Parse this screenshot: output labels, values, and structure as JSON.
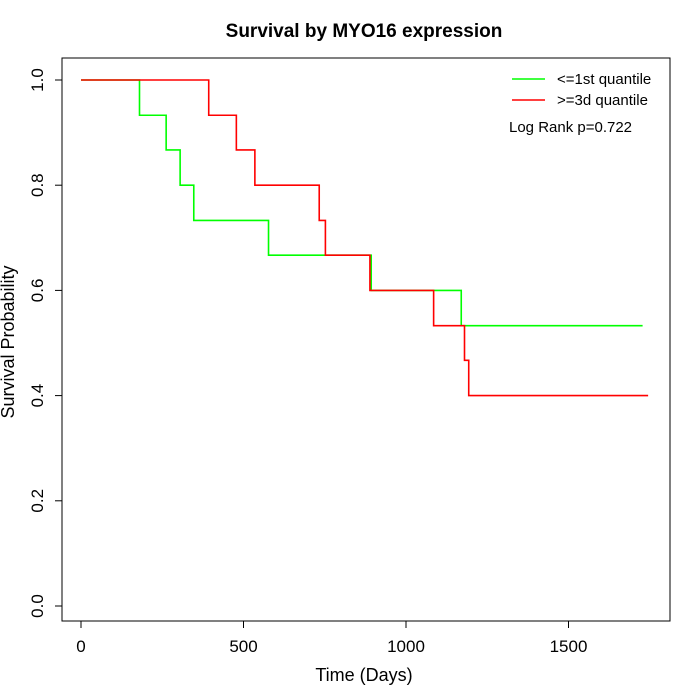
{
  "chart_data": {
    "type": "line",
    "subtype": "kaplan-meier-step",
    "title": "Survival by MYO16 expression",
    "xlabel": "Time (Days)",
    "ylabel": "Survival Probability",
    "xlim": [
      0,
      1800
    ],
    "ylim": [
      0,
      1.0
    ],
    "x_ticks": [
      0,
      500,
      1000,
      1500
    ],
    "y_ticks": [
      0.0,
      0.2,
      0.4,
      0.6,
      0.8,
      1.0
    ],
    "x_tick_labels": [
      "0",
      "500",
      "1000",
      "1500"
    ],
    "y_tick_labels": [
      "0.0",
      "0.2",
      "0.4",
      "0.6",
      "0.8",
      "1.0"
    ],
    "grid": false,
    "legend_position": "top-right",
    "annotation": "Log Rank p=0.722",
    "series": [
      {
        "name": "<=1st quantile",
        "color": "#00ff00",
        "steps": [
          {
            "x": 0,
            "y": 1.0
          },
          {
            "x": 180,
            "y": 0.933
          },
          {
            "x": 262,
            "y": 0.867
          },
          {
            "x": 305,
            "y": 0.8
          },
          {
            "x": 347,
            "y": 0.733
          },
          {
            "x": 577,
            "y": 0.667
          },
          {
            "x": 893,
            "y": 0.6
          },
          {
            "x": 1170,
            "y": 0.533
          }
        ],
        "end_x": 1728
      },
      {
        "name": ">=3d quantile",
        "color": "#ff0000",
        "steps": [
          {
            "x": 0,
            "y": 1.0
          },
          {
            "x": 393,
            "y": 0.933
          },
          {
            "x": 478,
            "y": 0.867
          },
          {
            "x": 535,
            "y": 0.8
          },
          {
            "x": 733,
            "y": 0.733
          },
          {
            "x": 752,
            "y": 0.667
          },
          {
            "x": 889,
            "y": 0.6
          },
          {
            "x": 1085,
            "y": 0.533
          },
          {
            "x": 1180,
            "y": 0.467
          },
          {
            "x": 1193,
            "y": 0.4
          }
        ],
        "end_x": 1745
      }
    ]
  }
}
